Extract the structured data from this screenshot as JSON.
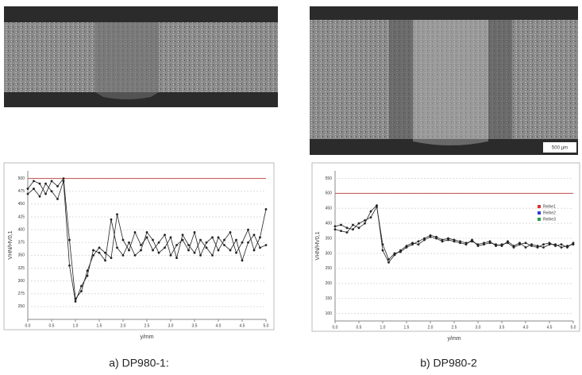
{
  "chart_data": [
    {
      "type": "line",
      "caption": "a) DP980-1:",
      "xlabel": "y/mm",
      "ylabel": "VHN/HV0,1",
      "x": [
        0,
        0.125,
        0.25,
        0.375,
        0.5,
        0.625,
        0.75,
        0.875,
        1,
        1.125,
        1.25,
        1.375,
        1.5,
        1.625,
        1.75,
        1.875,
        2,
        2.125,
        2.25,
        2.375,
        2.5,
        2.625,
        2.75,
        2.875,
        3,
        3.125,
        3.25,
        3.375,
        3.5,
        3.625,
        3.75,
        3.875,
        4,
        4.125,
        4.25,
        4.375,
        4.5,
        4.625,
        4.75,
        4.875,
        5
      ],
      "series": [
        {
          "color": "#222222",
          "values": [
            480,
            495,
            490,
            470,
            495,
            485,
            500,
            380,
            265,
            280,
            320,
            350,
            365,
            355,
            345,
            430,
            380,
            360,
            395,
            370,
            385,
            360,
            375,
            390,
            350,
            370,
            380,
            360,
            395,
            350,
            375,
            385,
            360,
            380,
            395,
            355,
            375,
            400,
            360,
            385,
            440
          ]
        },
        {
          "color": "#222222",
          "values": [
            470,
            480,
            465,
            490,
            475,
            460,
            495,
            330,
            260,
            290,
            310,
            360,
            355,
            340,
            420,
            365,
            350,
            375,
            350,
            360,
            395,
            380,
            355,
            365,
            385,
            345,
            390,
            370,
            355,
            380,
            365,
            350,
            385,
            370,
            360,
            380,
            340,
            375,
            390,
            365,
            370
          ]
        }
      ],
      "reference_line": {
        "value": 500,
        "color": "#c0504d"
      },
      "xlim": [
        0,
        5
      ],
      "ylim": [
        225,
        515
      ],
      "xticks": [
        {
          "value": 0,
          "label": "0.0"
        },
        0.5,
        {
          "value": 1,
          "label": "1.0"
        },
        1.5,
        {
          "value": 2,
          "label": "2.0"
        },
        2.5,
        {
          "value": 3,
          "label": "3.0"
        },
        3.5,
        {
          "value": 4,
          "label": "4.0"
        },
        4.5,
        {
          "value": 5,
          "label": "5.0"
        }
      ],
      "yticks": [
        250,
        275,
        300,
        325,
        350,
        375,
        400,
        425,
        450,
        475,
        500
      ],
      "grid": true
    },
    {
      "type": "line",
      "caption": "b) DP980-2",
      "xlabel": "y/mm",
      "ylabel": "VHN/HV0,1",
      "scale_bar": "500 µm",
      "x": [
        0,
        0.125,
        0.25,
        0.375,
        0.5,
        0.625,
        0.75,
        0.875,
        1,
        1.125,
        1.25,
        1.375,
        1.5,
        1.625,
        1.75,
        1.875,
        2,
        2.125,
        2.25,
        2.375,
        2.5,
        2.625,
        2.75,
        2.875,
        3,
        3.125,
        3.25,
        3.375,
        3.5,
        3.625,
        3.75,
        3.875,
        4,
        4.125,
        4.25,
        4.375,
        4.5,
        4.625,
        4.75,
        4.875,
        5
      ],
      "series": [
        {
          "color": "#222222",
          "values": [
            390,
            395,
            385,
            380,
            400,
            410,
            420,
            455,
            330,
            280,
            300,
            305,
            320,
            330,
            340,
            350,
            360,
            355,
            345,
            350,
            345,
            340,
            335,
            340,
            330,
            335,
            340,
            325,
            330,
            335,
            320,
            330,
            335,
            325,
            320,
            330,
            335,
            325,
            330,
            320,
            335
          ]
        },
        {
          "color": "#222222",
          "values": [
            380,
            375,
            370,
            395,
            385,
            400,
            440,
            460,
            310,
            270,
            295,
            310,
            325,
            335,
            330,
            345,
            355,
            350,
            340,
            345,
            340,
            335,
            330,
            345,
            325,
            330,
            335,
            330,
            325,
            340,
            325,
            335,
            320,
            330,
            325,
            320,
            330,
            330,
            320,
            325,
            330
          ]
        }
      ],
      "reference_line": {
        "value": 500,
        "color": "#c0504d"
      },
      "legend": [
        {
          "name": "Reihe1",
          "color": "#e0302a"
        },
        {
          "name": "Reihe2",
          "color": "#2a3fd0"
        },
        {
          "name": "Reihe3",
          "color": "#2aa040"
        }
      ],
      "legend_position": "upper right",
      "xlim": [
        0,
        5
      ],
      "ylim": [
        75,
        575
      ],
      "xticks": [
        {
          "value": 0,
          "label": "0.0"
        },
        0.5,
        {
          "value": 1,
          "label": "1.0"
        },
        1.5,
        {
          "value": 2,
          "label": "2.0"
        },
        2.5,
        {
          "value": 3,
          "label": "3.0"
        },
        3.5,
        {
          "value": 4,
          "label": "4.0"
        },
        4.5,
        {
          "value": 5,
          "label": "5.0"
        }
      ],
      "yticks": [
        100,
        150,
        200,
        250,
        300,
        350,
        400,
        450,
        500,
        550
      ],
      "grid": true
    }
  ]
}
